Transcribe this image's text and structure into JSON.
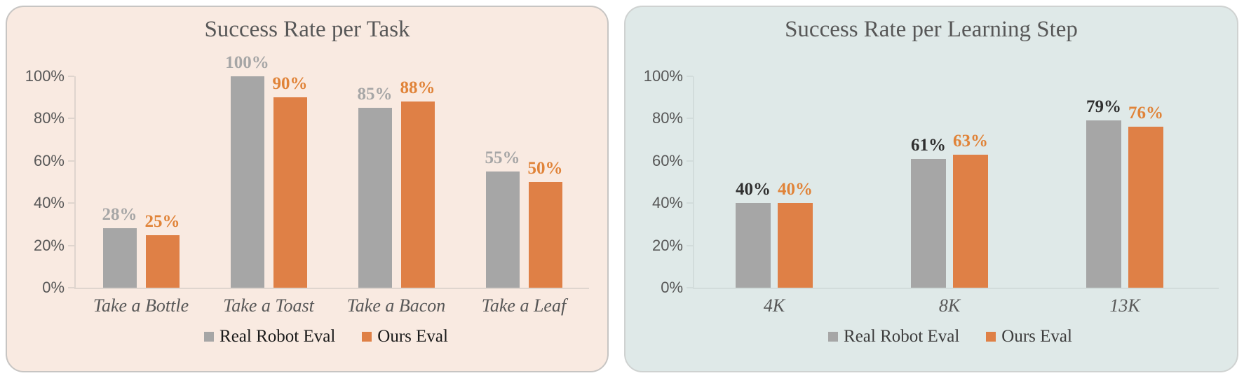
{
  "page": {
    "background": "#FFFFFF"
  },
  "chart_data": [
    {
      "type": "bar",
      "title": "Success Rate per Task",
      "categories": [
        "Take a Bottle",
        "Take a Toast",
        "Take a Bacon",
        "Take a Leaf"
      ],
      "series": [
        {
          "name": "Real Robot Eval",
          "color": "#A6A6A6",
          "label_color": "#A6A6A6",
          "values": [
            28,
            100,
            85,
            55
          ]
        },
        {
          "name": "Ours Eval",
          "color": "#DF8046",
          "label_color": "#E08338",
          "values": [
            25,
            90,
            88,
            50
          ]
        }
      ],
      "value_suffix": "%",
      "ylim": [
        0,
        100
      ],
      "yticks": [
        "100%",
        "80%",
        "60%",
        "40%",
        "20%",
        "0%"
      ],
      "grid": false,
      "legend_position": "bottom",
      "panel_bg": "#F9EAE1",
      "panel_border": "#C7C5C3",
      "axis_color": "#DFD5CE",
      "legend_text_color": "#1A1A1A",
      "title_color": "#575757",
      "tick_label_color": "#575757"
    },
    {
      "type": "bar",
      "title": "Success Rate per Learning Step",
      "categories": [
        "4K",
        "8K",
        "13K"
      ],
      "series": [
        {
          "name": "Real Robot Eval",
          "color": "#A6A6A6",
          "label_color": "#2F2F2F",
          "values": [
            40,
            61,
            79
          ]
        },
        {
          "name": "Ours Eval",
          "color": "#DF8046",
          "label_color": "#E08338",
          "values": [
            40,
            63,
            76
          ]
        }
      ],
      "value_suffix": "%",
      "ylim": [
        0,
        100
      ],
      "yticks": [
        "100%",
        "80%",
        "60%",
        "40%",
        "20%",
        "0%"
      ],
      "grid": false,
      "legend_position": "bottom",
      "panel_bg": "#DFE9E8",
      "panel_border": "#CFD2D1",
      "axis_color": "#D2DCDB",
      "legend_text_color": "#3D3D3D",
      "title_color": "#575757",
      "tick_label_color": "#575757"
    }
  ]
}
